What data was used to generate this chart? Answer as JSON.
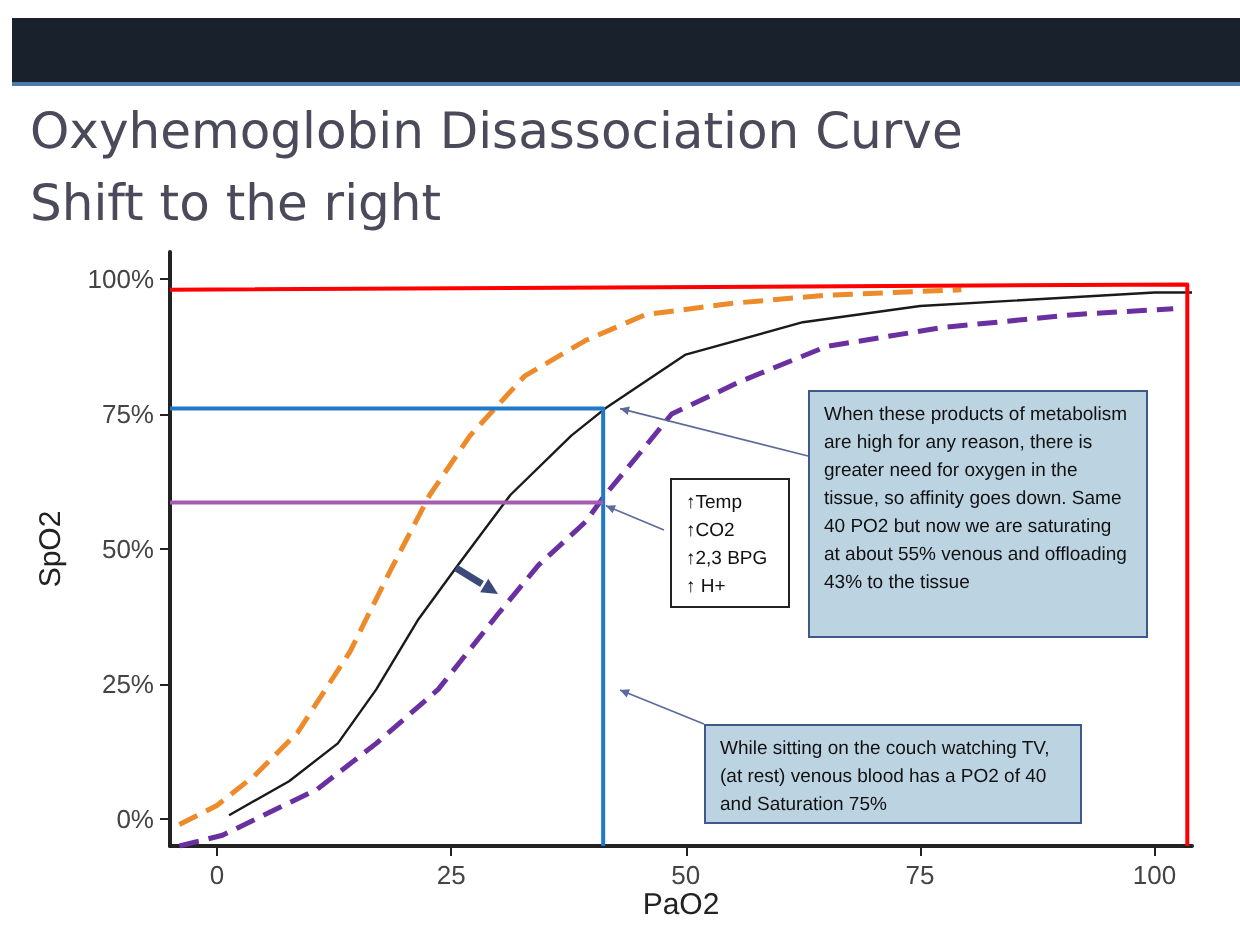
{
  "chart_data": {
    "type": "line",
    "title": "Oxyhemoglobin Disassociation Curve",
    "subtitle": "Shift to the right",
    "xlabel": "PaO2",
    "ylabel": "SpO2",
    "xlim": [
      -5,
      104
    ],
    "ylim": [
      -5,
      105
    ],
    "xticks": [
      0,
      25,
      50,
      75,
      100
    ],
    "yticks": [
      {
        "value": 0,
        "label": "0%"
      },
      {
        "value": 25,
        "label": "25%"
      },
      {
        "value": 50,
        "label": "50%"
      },
      {
        "value": 75,
        "label": "75%"
      },
      {
        "value": 100,
        "label": "100%"
      }
    ],
    "marker": "none",
    "series": [
      {
        "color": "#ed8a2a",
        "line_style": "dashed",
        "x": [
          -4,
          0,
          4,
          8.6,
          14.2,
          18.5,
          22.7,
          27,
          32.8,
          39.3,
          45.7,
          55,
          65,
          79.4
        ],
        "values": [
          -1,
          2.5,
          8,
          16,
          31,
          46,
          60,
          71,
          82,
          88.6,
          93.4,
          95.5,
          97,
          98
        ]
      },
      {
        "color": "#1a1a1a",
        "line_style": "solid",
        "x": [
          1.3,
          7.7,
          12.9,
          17,
          21.5,
          25.7,
          31.3,
          37.8,
          41.4,
          50,
          62.5,
          75,
          100,
          104
        ],
        "values": [
          0.7,
          7,
          14,
          24,
          37,
          47,
          60,
          71,
          76,
          86,
          92,
          95,
          97.5,
          97.5
        ]
      },
      {
        "color": "#6a2fa0",
        "line_style": "dashed",
        "x": [
          -4,
          0.6,
          10.7,
          17,
          23.6,
          30,
          34.3,
          39.3,
          41.4,
          45.7,
          48.5,
          55.8,
          65,
          77.3,
          91.4,
          102
        ],
        "values": [
          -5,
          -3,
          5.5,
          14,
          24,
          38,
          47,
          55,
          60,
          69,
          75,
          81,
          87.5,
          91,
          93.4,
          94.5
        ]
      },
      {
        "color": "#ff0000",
        "line_style": "solid",
        "x": [
          -5,
          103.5,
          103.5
        ],
        "values": [
          98,
          99,
          -5
        ]
      },
      {
        "color": "#1f78c8",
        "line_style": "solid",
        "x": [
          -5,
          41.2,
          41.2
        ],
        "values": [
          76,
          76,
          -5
        ]
      },
      {
        "color": "#a45cb0",
        "line_style": "solid",
        "x": [
          -5,
          41.2
        ],
        "values": [
          58.6,
          58.6
        ]
      }
    ],
    "annotations": [
      {
        "text": "When these products of metabolism are high for any reason, there is greater need for oxygen in the tissue, so affinity goes down. Same 40 PO2 but now we are saturating at about 55% venous and offloading 43% to the tissue",
        "x": 43,
        "y": 76
      },
      {
        "text": "↑Temp\n↑CO2\n↑2,3 BPG\n↑ H+",
        "x": 41.5,
        "y": 58
      },
      "While sitting on the couch watching TV, (at rest) venous blood has a PO2 of 40 and Saturation 75%"
    ]
  }
}
